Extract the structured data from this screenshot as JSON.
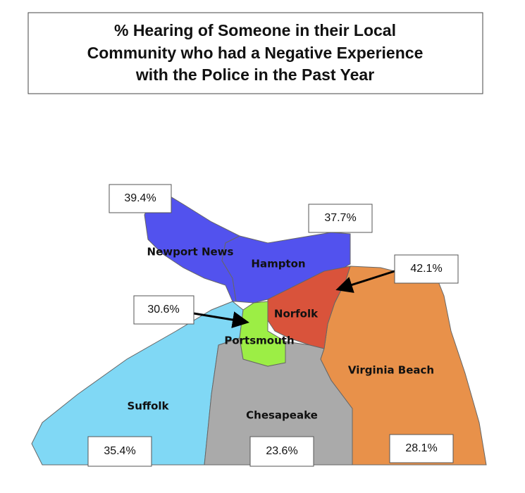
{
  "title": [
    "% Hearing of Someone in their Local",
    "Community who had a Negative Experience",
    "with the Police in the Past Year"
  ],
  "regions": [
    {
      "name": "Newport News",
      "label": "39.4%",
      "color": "#5252ee"
    },
    {
      "name": "Hampton",
      "label": "37.7%",
      "color": "#5252ee"
    },
    {
      "name": "Norfolk",
      "label": "42.1%",
      "color": "#d9533b"
    },
    {
      "name": "Portsmouth",
      "label": "30.6%",
      "color": "#9cee45"
    },
    {
      "name": "Virginia Beach",
      "label": "28.1%",
      "color": "#e8914a"
    },
    {
      "name": "Suffolk",
      "label": "35.4%",
      "color": "#80d8f5"
    },
    {
      "name": "Chesapeake",
      "label": "23.6%",
      "color": "#aaaaaa"
    }
  ]
}
